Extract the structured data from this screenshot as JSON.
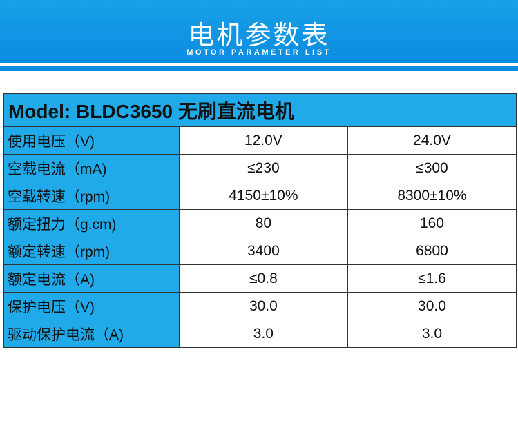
{
  "header": {
    "title": "电机参数表",
    "subtitle": "MOTOR PARAMETER LIST"
  },
  "table": {
    "title": "Model: BLDC3650 无刷直流电机",
    "rows": [
      [
        "使用电压（V)",
        "12.0V",
        "24.0V"
      ],
      [
        "空载电流（mA)",
        "≤230",
        "≤300"
      ],
      [
        "空载转速（rpm)",
        "4150±10%",
        "8300±10%"
      ],
      [
        "额定扭力（g.cm)",
        "80",
        "160"
      ],
      [
        "额定转速（rpm)",
        "3400",
        "6800"
      ],
      [
        "额定电流（A)",
        "≤0.8",
        "≤1.6"
      ],
      [
        "保护电压（V)",
        "30.0",
        "30.0"
      ],
      [
        "驱动保护电流（A)",
        "3.0",
        "3.0"
      ]
    ]
  }
}
